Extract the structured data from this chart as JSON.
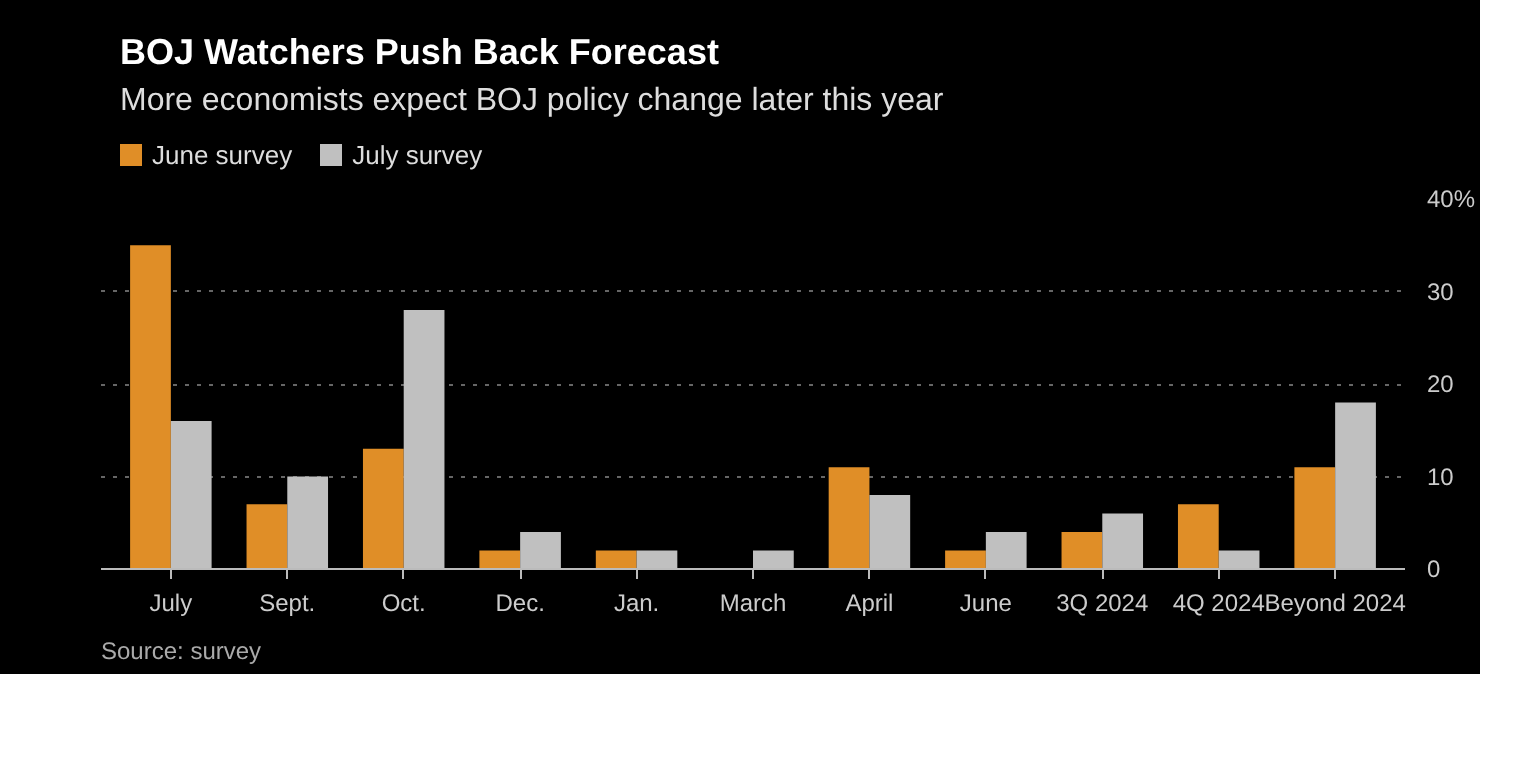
{
  "chart_data": {
    "type": "bar",
    "title": "BOJ Watchers Push Back Forecast",
    "subtitle": "More economists expect BOJ policy change later this year",
    "categories": [
      "July",
      "Sept.",
      "Oct.",
      "Dec.",
      "Jan.",
      "March",
      "April",
      "June",
      "3Q 2024",
      "4Q 2024",
      "Beyond 2024"
    ],
    "series": [
      {
        "name": "June survey",
        "color": "#e08e27",
        "values": [
          35,
          7,
          13,
          2,
          2,
          0,
          11,
          2,
          4,
          7,
          11
        ]
      },
      {
        "name": "July survey",
        "color": "#c0c0c0",
        "values": [
          16,
          10,
          28,
          4,
          2,
          2,
          8,
          4,
          6,
          2,
          18
        ]
      }
    ],
    "ylim": [
      0,
      40
    ],
    "yticks": [
      0,
      10,
      20,
      30,
      {
        "value": 40,
        "label": "40%"
      }
    ],
    "grid": "y",
    "legend": "top left",
    "annotations": [
      "Source: survey"
    ]
  }
}
